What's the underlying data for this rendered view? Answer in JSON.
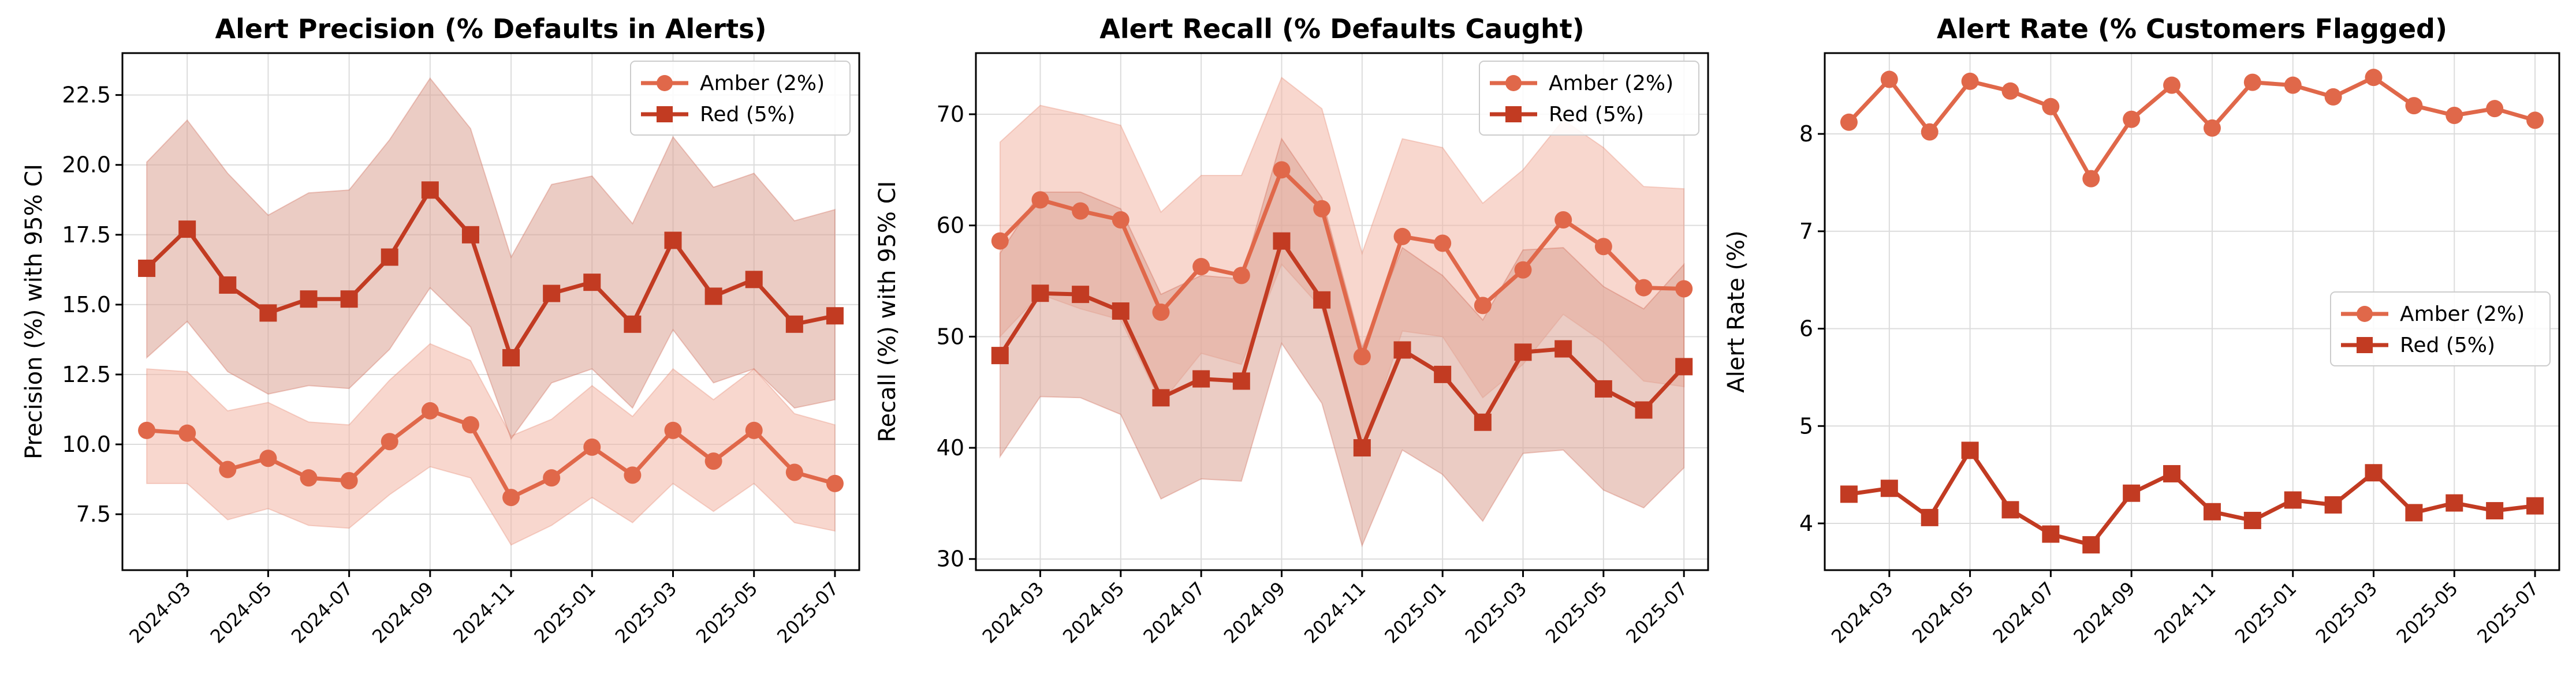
{
  "colors": {
    "amber": "#e0684a",
    "red": "#c23b22",
    "amber_band": "#f2b6a6",
    "red_band": "#dba394",
    "grid": "#dcdcdc"
  },
  "x_tick_labels": [
    "2024-03",
    "2024-05",
    "2024-07",
    "2024-09",
    "2024-11",
    "2025-01",
    "2025-03",
    "2025-05",
    "2025-07"
  ],
  "chart_data": [
    {
      "type": "line",
      "title": "Alert Precision (% Defaults in Alerts)",
      "xlabel": "",
      "ylabel": "Precision (%) with 95% CI",
      "x": [
        "2024-02",
        "2024-03",
        "2024-04",
        "2024-05",
        "2024-06",
        "2024-07",
        "2024-08",
        "2024-09",
        "2024-10",
        "2024-11",
        "2024-12",
        "2025-01",
        "2025-02",
        "2025-03",
        "2025-04",
        "2025-05",
        "2025-06",
        "2025-07"
      ],
      "ylim": [
        5.5,
        24.0
      ],
      "yticks": [
        7.5,
        10.0,
        12.5,
        15.0,
        17.5,
        20.0,
        22.5
      ],
      "ytick_labels": [
        "7.5",
        "10.0",
        "12.5",
        "15.0",
        "17.5",
        "20.0",
        "22.5"
      ],
      "grid": true,
      "legend": "upper right",
      "series": [
        {
          "name": "Amber (2%)",
          "marker": "circle",
          "values": [
            10.5,
            10.4,
            9.1,
            9.5,
            8.8,
            8.7,
            10.1,
            11.2,
            10.7,
            8.1,
            8.8,
            9.9,
            8.9,
            10.5,
            9.4,
            10.5,
            9.0,
            8.6
          ],
          "ci_lower": [
            8.6,
            8.6,
            7.3,
            7.7,
            7.1,
            7.0,
            8.2,
            9.2,
            8.8,
            6.4,
            7.1,
            8.1,
            7.2,
            8.6,
            7.6,
            8.6,
            7.2,
            6.9
          ],
          "ci_upper": [
            12.7,
            12.6,
            11.2,
            11.5,
            10.8,
            10.7,
            12.3,
            13.6,
            13.0,
            10.3,
            10.9,
            12.1,
            11.0,
            12.7,
            11.6,
            12.7,
            11.1,
            10.7
          ]
        },
        {
          "name": "Red (5%)",
          "marker": "square",
          "values": [
            16.3,
            17.7,
            15.7,
            14.7,
            15.2,
            15.2,
            16.7,
            19.1,
            17.5,
            13.1,
            15.4,
            15.8,
            14.3,
            17.3,
            15.3,
            15.9,
            14.3,
            14.6
          ],
          "ci_lower": [
            13.1,
            14.4,
            12.6,
            11.8,
            12.1,
            12.0,
            13.4,
            15.6,
            14.2,
            10.2,
            12.2,
            12.7,
            11.3,
            14.1,
            12.2,
            12.7,
            11.3,
            11.6
          ],
          "ci_upper": [
            20.1,
            21.6,
            19.7,
            18.2,
            19.0,
            19.1,
            20.9,
            23.1,
            21.3,
            16.7,
            19.3,
            19.6,
            17.9,
            21.0,
            19.2,
            19.7,
            18.0,
            18.4
          ]
        }
      ]
    },
    {
      "type": "line",
      "title": "Alert Recall (% Defaults Caught)",
      "xlabel": "",
      "ylabel": "Recall (%) with 95% CI",
      "x": [
        "2024-02",
        "2024-03",
        "2024-04",
        "2024-05",
        "2024-06",
        "2024-07",
        "2024-08",
        "2024-09",
        "2024-10",
        "2024-11",
        "2024-12",
        "2025-01",
        "2025-02",
        "2025-03",
        "2025-04",
        "2025-05",
        "2025-06",
        "2025-07"
      ],
      "ylim": [
        29.0,
        75.5
      ],
      "yticks": [
        30,
        40,
        50,
        60,
        70
      ],
      "ytick_labels": [
        "30",
        "40",
        "50",
        "60",
        "70"
      ],
      "grid": true,
      "legend": "upper right",
      "series": [
        {
          "name": "Amber (2%)",
          "marker": "circle",
          "values": [
            58.6,
            62.3,
            61.3,
            60.5,
            52.2,
            56.3,
            55.5,
            65.0,
            61.5,
            48.2,
            59.0,
            58.4,
            52.8,
            56.0,
            60.5,
            58.1,
            54.4,
            54.3
          ],
          "ci_lower": [
            50.0,
            53.8,
            52.5,
            51.5,
            44.0,
            48.5,
            47.5,
            56.5,
            52.5,
            39.5,
            50.5,
            50.0,
            44.5,
            47.5,
            52.0,
            49.5,
            46.0,
            45.5
          ],
          "ci_upper": [
            67.5,
            70.8,
            70.0,
            69.0,
            61.2,
            64.5,
            64.5,
            73.3,
            70.5,
            57.5,
            67.8,
            67.0,
            62.0,
            65.0,
            69.5,
            67.0,
            63.5,
            63.3
          ]
        },
        {
          "name": "Red (5%)",
          "marker": "square",
          "values": [
            48.3,
            53.9,
            53.8,
            52.3,
            44.5,
            46.2,
            46.0,
            58.6,
            53.3,
            40.0,
            48.8,
            46.6,
            42.3,
            48.6,
            48.9,
            45.3,
            43.4,
            47.3
          ],
          "ci_lower": [
            39.2,
            44.6,
            44.5,
            43.0,
            35.4,
            37.2,
            37.0,
            49.4,
            44.0,
            31.2,
            39.8,
            37.6,
            33.4,
            39.5,
            39.8,
            36.2,
            34.6,
            38.2
          ],
          "ci_upper": [
            57.5,
            63.0,
            63.0,
            61.5,
            53.8,
            55.5,
            55.2,
            67.8,
            62.5,
            49.0,
            58.0,
            55.5,
            51.5,
            57.8,
            58.0,
            54.5,
            52.5,
            56.5
          ]
        }
      ]
    },
    {
      "type": "line",
      "title": "Alert Rate (% Customers Flagged)",
      "xlabel": "",
      "ylabel": "Alert Rate (%)",
      "x": [
        "2024-02",
        "2024-03",
        "2024-04",
        "2024-05",
        "2024-06",
        "2024-07",
        "2024-08",
        "2024-09",
        "2024-10",
        "2024-11",
        "2024-12",
        "2025-01",
        "2025-02",
        "2025-03",
        "2025-04",
        "2025-05",
        "2025-06",
        "2025-07"
      ],
      "ylim": [
        3.52,
        8.83
      ],
      "yticks": [
        4,
        5,
        6,
        7,
        8
      ],
      "ytick_labels": [
        "4",
        "5",
        "6",
        "7",
        "8"
      ],
      "grid": true,
      "legend": "center right",
      "series": [
        {
          "name": "Amber (2%)",
          "marker": "circle",
          "values": [
            8.12,
            8.56,
            8.02,
            8.54,
            8.44,
            8.28,
            7.54,
            8.15,
            8.5,
            8.06,
            8.53,
            8.5,
            8.38,
            8.58,
            8.29,
            8.19,
            8.26,
            8.14
          ]
        },
        {
          "name": "Red (5%)",
          "marker": "square",
          "values": [
            4.3,
            4.36,
            4.06,
            4.75,
            4.14,
            3.89,
            3.78,
            4.31,
            4.51,
            4.12,
            4.03,
            4.24,
            4.19,
            4.52,
            4.11,
            4.21,
            4.13,
            4.18
          ]
        }
      ]
    }
  ]
}
